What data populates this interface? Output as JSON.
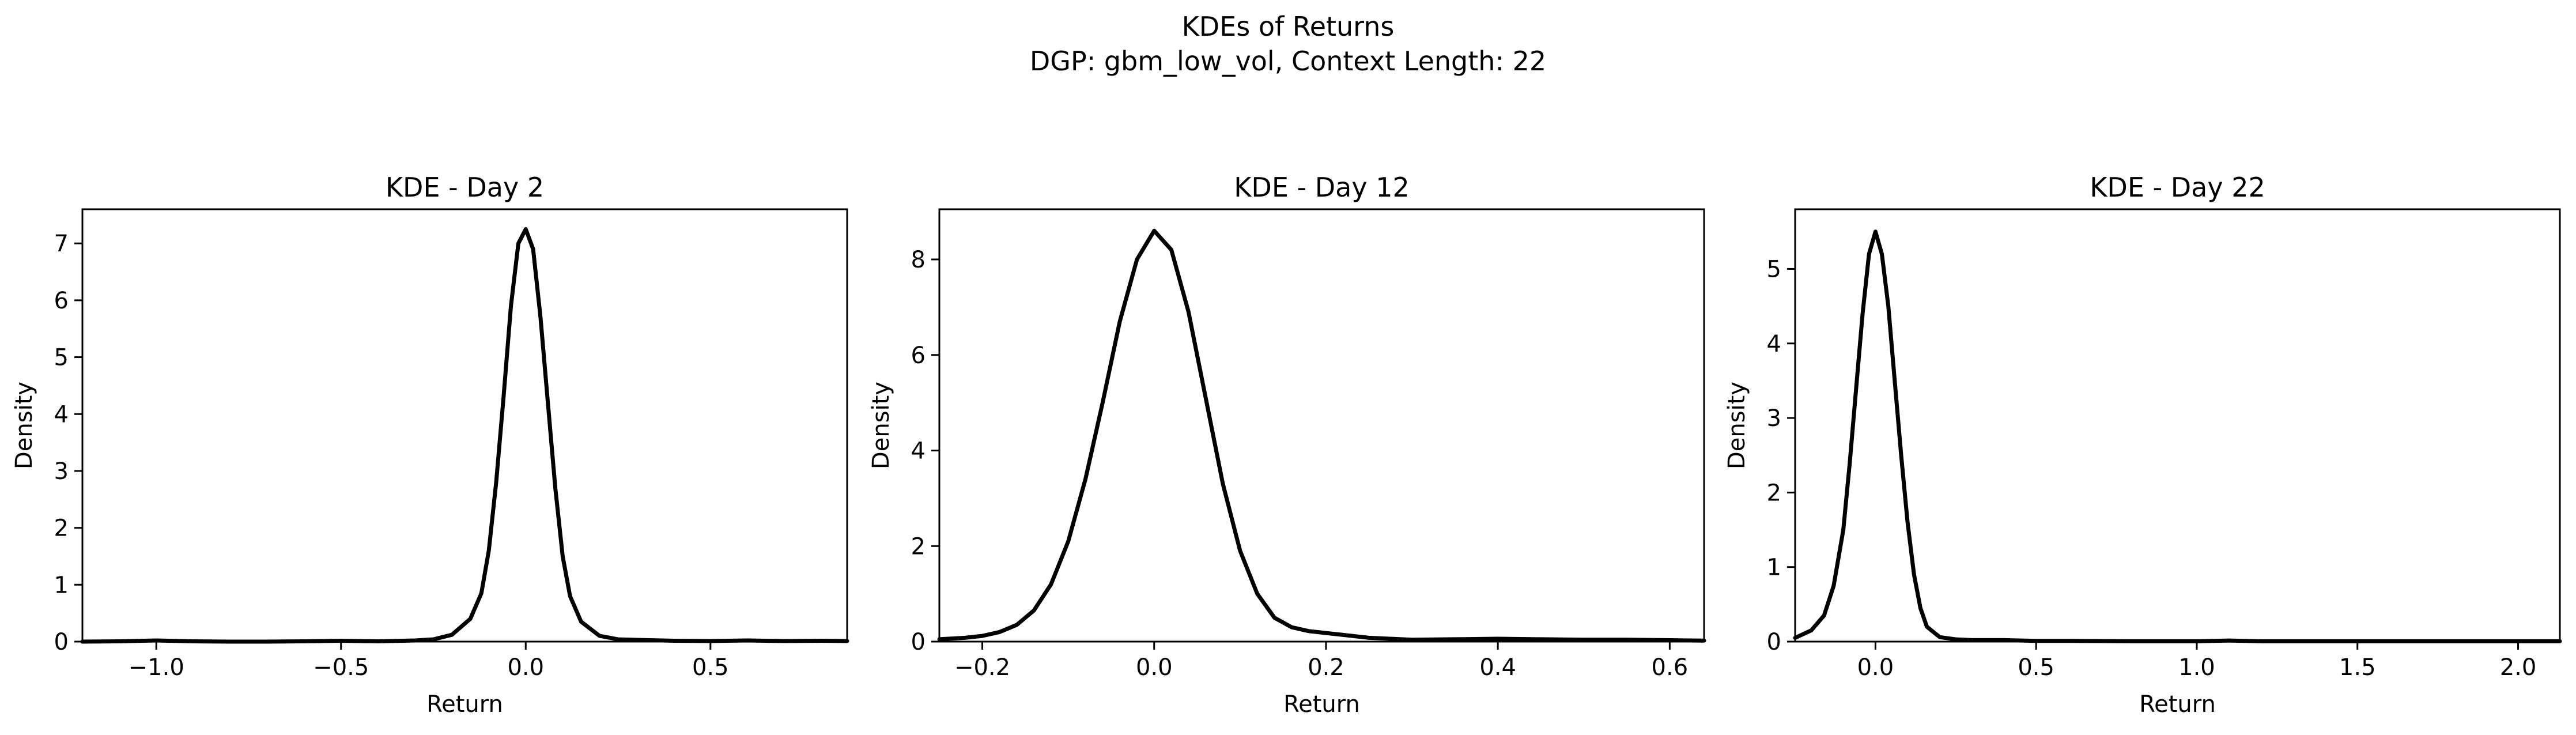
{
  "suptitle": {
    "line1": "KDEs of Returns",
    "line2": "DGP: gbm_low_vol, Context Length: 22"
  },
  "chart_data": [
    {
      "type": "line",
      "title": "KDE - Day 2",
      "xlabel": "Return",
      "ylabel": "Density",
      "xlim": [
        -1.2,
        0.87
      ],
      "ylim": [
        0,
        7.6
      ],
      "xticks": [
        -1.0,
        -0.5,
        0.0,
        0.5
      ],
      "xtick_labels": [
        "−1.0",
        "−0.5",
        "0.0",
        "0.5"
      ],
      "yticks": [
        0,
        1,
        2,
        3,
        4,
        5,
        6,
        7
      ],
      "ytick_labels": [
        "0",
        "1",
        "2",
        "3",
        "4",
        "5",
        "6",
        "7"
      ],
      "grid": false,
      "series": [
        {
          "color": "#000000",
          "x": [
            -1.2,
            -1.1,
            -1.0,
            -0.9,
            -0.8,
            -0.7,
            -0.6,
            -0.5,
            -0.4,
            -0.3,
            -0.25,
            -0.2,
            -0.15,
            -0.12,
            -0.1,
            -0.08,
            -0.06,
            -0.04,
            -0.02,
            0.0,
            0.02,
            0.04,
            0.06,
            0.08,
            0.1,
            0.12,
            0.15,
            0.2,
            0.25,
            0.3,
            0.4,
            0.5,
            0.6,
            0.7,
            0.8,
            0.87
          ],
          "y": [
            0.0,
            0.005,
            0.02,
            0.005,
            0.0,
            0.0,
            0.005,
            0.015,
            0.005,
            0.02,
            0.04,
            0.12,
            0.4,
            0.85,
            1.6,
            2.8,
            4.3,
            5.9,
            7.0,
            7.25,
            6.9,
            5.7,
            4.2,
            2.7,
            1.5,
            0.8,
            0.35,
            0.1,
            0.04,
            0.03,
            0.015,
            0.01,
            0.02,
            0.01,
            0.015,
            0.01
          ]
        }
      ]
    },
    {
      "type": "line",
      "title": "KDE - Day 12",
      "xlabel": "Return",
      "ylabel": "Density",
      "xlim": [
        -0.25,
        0.64
      ],
      "ylim": [
        0,
        9.05
      ],
      "xticks": [
        -0.2,
        0.0,
        0.2,
        0.4,
        0.6
      ],
      "xtick_labels": [
        "−0.2",
        "0.0",
        "0.2",
        "0.4",
        "0.6"
      ],
      "yticks": [
        0,
        2,
        4,
        6,
        8
      ],
      "ytick_labels": [
        "0",
        "2",
        "4",
        "6",
        "8"
      ],
      "grid": false,
      "series": [
        {
          "color": "#000000",
          "x": [
            -0.25,
            -0.22,
            -0.2,
            -0.18,
            -0.16,
            -0.14,
            -0.12,
            -0.1,
            -0.08,
            -0.06,
            -0.04,
            -0.02,
            0.0,
            0.02,
            0.04,
            0.06,
            0.08,
            0.1,
            0.12,
            0.14,
            0.16,
            0.18,
            0.2,
            0.22,
            0.25,
            0.3,
            0.35,
            0.4,
            0.45,
            0.5,
            0.55,
            0.6,
            0.64
          ],
          "y": [
            0.05,
            0.08,
            0.12,
            0.2,
            0.35,
            0.65,
            1.2,
            2.1,
            3.4,
            5.0,
            6.7,
            8.0,
            8.6,
            8.2,
            6.9,
            5.1,
            3.3,
            1.9,
            1.0,
            0.5,
            0.3,
            0.22,
            0.18,
            0.14,
            0.08,
            0.04,
            0.05,
            0.06,
            0.05,
            0.04,
            0.04,
            0.03,
            0.02
          ]
        }
      ]
    },
    {
      "type": "line",
      "title": "KDE - Day 22",
      "xlabel": "Return",
      "ylabel": "Density",
      "xlim": [
        -0.25,
        2.13
      ],
      "ylim": [
        0,
        5.8
      ],
      "xticks": [
        0.0,
        0.5,
        1.0,
        1.5,
        2.0
      ],
      "xtick_labels": [
        "0.0",
        "0.5",
        "1.0",
        "1.5",
        "2.0"
      ],
      "yticks": [
        0,
        1,
        2,
        3,
        4,
        5
      ],
      "ytick_labels": [
        "0",
        "1",
        "2",
        "3",
        "4",
        "5"
      ],
      "grid": false,
      "series": [
        {
          "color": "#000000",
          "x": [
            -0.25,
            -0.2,
            -0.16,
            -0.13,
            -0.1,
            -0.08,
            -0.06,
            -0.04,
            -0.02,
            0.0,
            0.02,
            0.04,
            0.06,
            0.08,
            0.1,
            0.12,
            0.14,
            0.16,
            0.2,
            0.25,
            0.3,
            0.4,
            0.5,
            0.6,
            0.8,
            1.0,
            1.1,
            1.2,
            1.4,
            1.6,
            1.8,
            2.0,
            2.13
          ],
          "y": [
            0.05,
            0.15,
            0.35,
            0.75,
            1.5,
            2.4,
            3.4,
            4.4,
            5.2,
            5.5,
            5.2,
            4.5,
            3.5,
            2.5,
            1.6,
            0.9,
            0.45,
            0.2,
            0.06,
            0.03,
            0.02,
            0.02,
            0.01,
            0.01,
            0.005,
            0.005,
            0.015,
            0.005,
            0.005,
            0.005,
            0.005,
            0.005,
            0.005
          ]
        }
      ]
    }
  ]
}
